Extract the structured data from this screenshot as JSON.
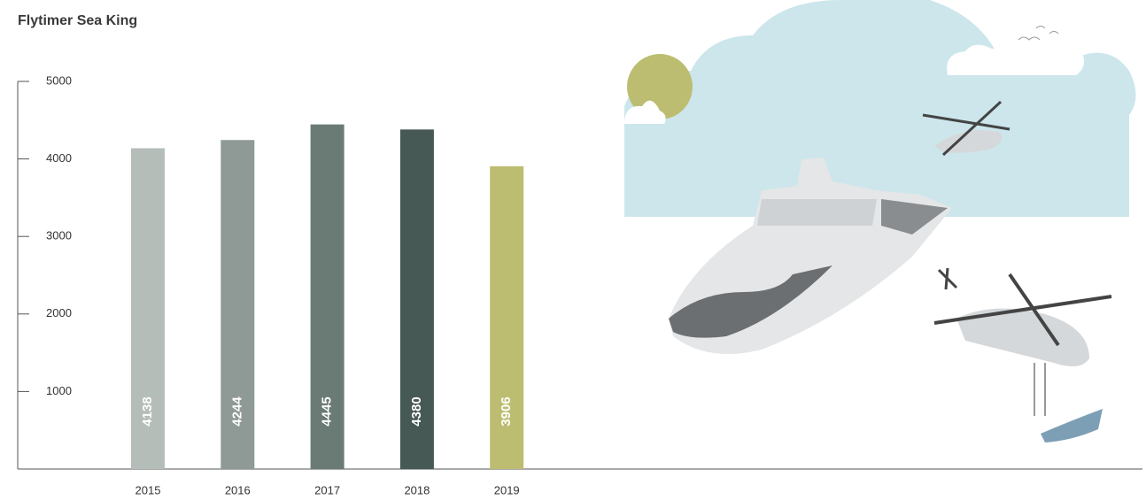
{
  "chart_data": {
    "type": "bar",
    "title": "Flytimer Sea King",
    "categories": [
      "2015",
      "2016",
      "2017",
      "2018",
      "2019"
    ],
    "values": [
      4138,
      4244,
      4445,
      4380,
      3906
    ],
    "colors": [
      "#b5bdb9",
      "#8f9a96",
      "#6a7a74",
      "#465954",
      "#bdbd72"
    ],
    "ylim": [
      0,
      5000
    ],
    "yticks": [
      1000,
      2000,
      3000,
      4000,
      5000
    ]
  }
}
